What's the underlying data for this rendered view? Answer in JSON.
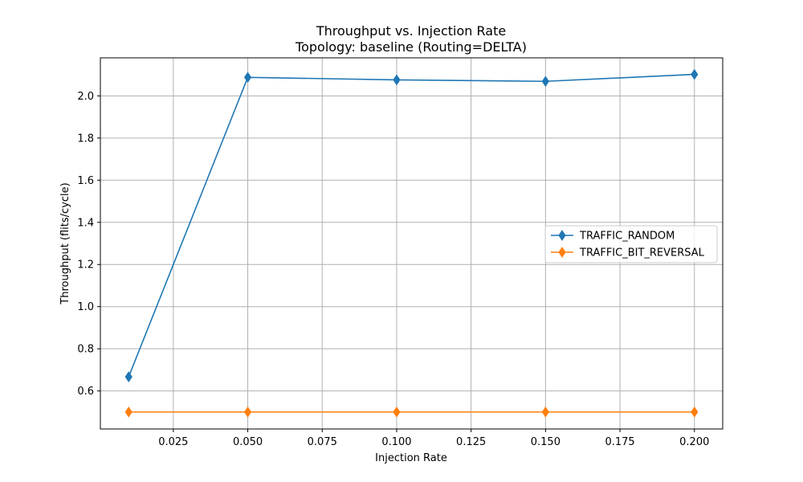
{
  "chart_data": {
    "type": "line",
    "title": "Throughput vs. Injection Rate",
    "subtitle": "Topology: baseline (Routing=DELTA)",
    "xlabel": "Injection Rate",
    "ylabel": "Throughput (flits/cycle)",
    "xlim": [
      0.0005,
      0.2095
    ],
    "ylim": [
      0.4195,
      2.1805
    ],
    "xticks": [
      0.025,
      0.05,
      0.075,
      0.1,
      0.125,
      0.15,
      0.175,
      0.2
    ],
    "xtick_labels": [
      "0.025",
      "0.050",
      "0.075",
      "0.100",
      "0.125",
      "0.150",
      "0.175",
      "0.200"
    ],
    "yticks": [
      0.6,
      0.8,
      1.0,
      1.2,
      1.4,
      1.6,
      1.8,
      2.0
    ],
    "ytick_labels": [
      "0.6",
      "0.8",
      "1.0",
      "1.2",
      "1.4",
      "1.6",
      "1.8",
      "2.0"
    ],
    "grid": true,
    "legend_position": "center-right",
    "x": [
      0.01,
      0.05,
      0.1,
      0.15,
      0.2
    ],
    "series": [
      {
        "name": "TRAFFIC_RANDOM",
        "color": "#1f77b4",
        "marker": "diamond",
        "values": [
          0.667,
          2.088,
          2.076,
          2.069,
          2.102
        ]
      },
      {
        "name": "TRAFFIC_BIT_REVERSAL",
        "color": "#ff7f0e",
        "marker": "diamond",
        "values": [
          0.5,
          0.5,
          0.5,
          0.5,
          0.5
        ]
      }
    ]
  }
}
